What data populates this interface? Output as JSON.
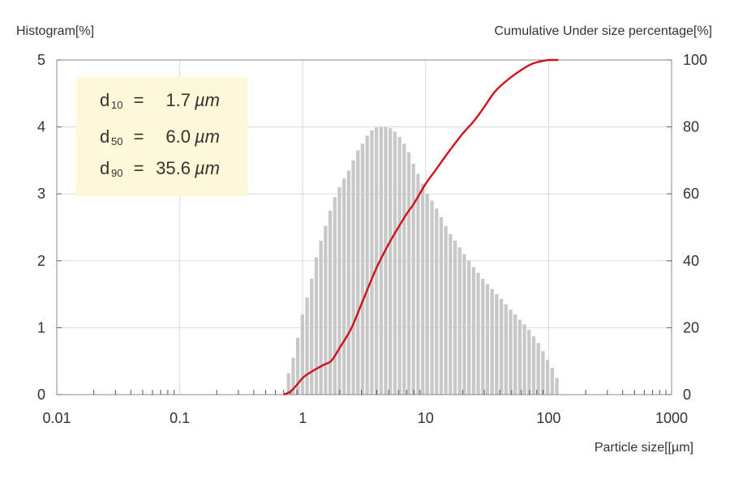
{
  "chart_data": {
    "type": "bar+line",
    "left_axis_label": "Histogram[%]",
    "right_axis_label": "Cumulative Under size percentage[%]",
    "xlabel": "Particle size[[µm]",
    "x_scale": "log",
    "xlim": [
      0.01,
      1000
    ],
    "x_tick_labels": [
      "0.01",
      "0.1",
      "1",
      "10",
      "100",
      "1000"
    ],
    "ylim_left": [
      0,
      5
    ],
    "y_left_tick_labels": [
      "0",
      "1",
      "2",
      "3",
      "4",
      "5"
    ],
    "ylim_right": [
      0,
      100
    ],
    "y_right_tick_labels": [
      "0",
      "20",
      "40",
      "60",
      "80",
      "100"
    ],
    "grid": true,
    "colors": {
      "bars": "#c8c8c8",
      "cumulative": "#d0101b",
      "stats_box": "#fdf8d8",
      "grid": "#d9d9d9"
    },
    "histogram": {
      "x": [
        0.767,
        0.837,
        0.912,
        0.995,
        1.085,
        1.183,
        1.29,
        1.406,
        1.534,
        1.672,
        1.824,
        1.989,
        2.169,
        2.365,
        2.579,
        2.812,
        3.067,
        3.344,
        3.647,
        3.977,
        4.337,
        4.729,
        5.157,
        5.624,
        6.133,
        6.688,
        7.293,
        7.953,
        8.673,
        9.457,
        10.31,
        11.25,
        12.26,
        13.37,
        14.58,
        15.9,
        17.34,
        18.91,
        20.62,
        22.49,
        24.52,
        26.74,
        29.16,
        31.8,
        34.68,
        37.82,
        41.24,
        44.97,
        49.04,
        53.48,
        58.32,
        63.59,
        69.35,
        75.62,
        82.46,
        89.93,
        98.06,
        106.9,
        116.6
      ],
      "values": [
        0.32,
        0.55,
        0.85,
        1.2,
        1.45,
        1.73,
        2.05,
        2.3,
        2.52,
        2.75,
        2.95,
        3.1,
        3.23,
        3.35,
        3.5,
        3.65,
        3.75,
        3.87,
        3.95,
        3.99,
        4.0,
        4.0,
        3.98,
        3.93,
        3.85,
        3.75,
        3.62,
        3.45,
        3.3,
        3.15,
        3.0,
        2.9,
        2.78,
        2.65,
        2.52,
        2.4,
        2.3,
        2.2,
        2.1,
        2.0,
        1.9,
        1.82,
        1.73,
        1.65,
        1.58,
        1.5,
        1.43,
        1.35,
        1.27,
        1.2,
        1.12,
        1.05,
        0.97,
        0.87,
        0.77,
        0.65,
        0.52,
        0.4,
        0.25
      ]
    },
    "cumulative_curve": {
      "x": [
        0.7,
        0.8,
        0.9,
        1.0,
        1.2,
        1.5,
        1.7,
        2.0,
        2.5,
        3.0,
        4.0,
        5.0,
        6.0,
        7.0,
        8.0,
        10,
        12,
        15,
        20,
        25,
        30,
        35.6,
        40,
        50,
        60,
        70,
        80,
        90,
        100,
        110,
        120
      ],
      "values": [
        0,
        1,
        3,
        5,
        7,
        9,
        10,
        14,
        20,
        27,
        38,
        45,
        50,
        54,
        57,
        63,
        67,
        72,
        78,
        82,
        86,
        90,
        92,
        95,
        97,
        98.5,
        99.3,
        99.7,
        100,
        100,
        100
      ]
    },
    "stats": [
      {
        "name": "d",
        "sub": "10",
        "eq": "=",
        "value": "1.7",
        "unit": "µm"
      },
      {
        "name": "d",
        "sub": "50",
        "eq": "=",
        "value": "6.0",
        "unit": "µm"
      },
      {
        "name": "d",
        "sub": "90",
        "eq": "=",
        "value": "35.6",
        "unit": "µm"
      }
    ]
  }
}
